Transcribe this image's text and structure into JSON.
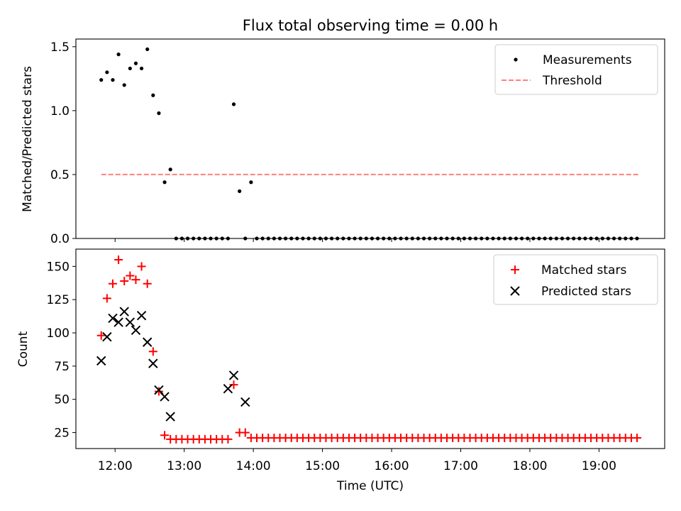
{
  "chart_data": [
    {
      "type": "scatter",
      "title": "Flux total observing time = 0.00 h",
      "xlabel": "",
      "ylabel": "Matched/Predicted stars",
      "ylim": [
        0,
        1.56
      ],
      "yticks": [
        0.0,
        0.5,
        1.0,
        1.5
      ],
      "ytick_labels": [
        "0.0",
        "0.5",
        "1.0",
        "1.5"
      ],
      "legend": {
        "placement": "top-right",
        "entries": [
          "Measurements",
          "Threshold"
        ]
      },
      "colors": {
        "measurements": "#000000",
        "threshold": "#ff7f7f"
      },
      "threshold": {
        "name": "Threshold",
        "y": 0.5,
        "x_start": "11:48",
        "x_end": "19:34"
      },
      "series": [
        {
          "name": "Measurements",
          "x": [
            "11:48",
            "11:53",
            "11:58",
            "12:03",
            "12:08",
            "12:13",
            "12:18",
            "12:23",
            "12:28",
            "12:33",
            "12:38",
            "12:43",
            "12:48",
            "12:53",
            "12:58",
            "13:03",
            "13:08",
            "13:13",
            "13:18",
            "13:23",
            "13:28",
            "13:33",
            "13:38",
            "13:43",
            "13:48",
            "13:53",
            "13:58",
            "14:03",
            "14:08",
            "14:13",
            "14:18",
            "14:23",
            "14:28",
            "14:33",
            "14:38",
            "14:43",
            "14:48",
            "14:53",
            "14:58",
            "15:03",
            "15:08",
            "15:13",
            "15:18",
            "15:23",
            "15:28",
            "15:33",
            "15:38",
            "15:43",
            "15:48",
            "15:53",
            "15:58",
            "16:03",
            "16:08",
            "16:13",
            "16:18",
            "16:23",
            "16:28",
            "16:33",
            "16:38",
            "16:43",
            "16:48",
            "16:53",
            "16:58",
            "17:03",
            "17:08",
            "17:13",
            "17:18",
            "17:23",
            "17:28",
            "17:33",
            "17:38",
            "17:43",
            "17:48",
            "17:53",
            "17:58",
            "18:03",
            "18:08",
            "18:13",
            "18:18",
            "18:23",
            "18:28",
            "18:33",
            "18:38",
            "18:43",
            "18:48",
            "18:53",
            "18:58",
            "19:03",
            "19:08",
            "19:13",
            "19:18",
            "19:23",
            "19:28",
            "19:33"
          ],
          "y": [
            1.24,
            1.3,
            1.24,
            1.44,
            1.2,
            1.33,
            1.37,
            1.33,
            1.48,
            1.12,
            0.98,
            0.44,
            0.54,
            0,
            0,
            0,
            0,
            0,
            0,
            0,
            0,
            0,
            0,
            1.05,
            0.37,
            0,
            0.44,
            0,
            0,
            0,
            0,
            0,
            0,
            0,
            0,
            0,
            0,
            0,
            0,
            0,
            0,
            0,
            0,
            0,
            0,
            0,
            0,
            0,
            0,
            0,
            0,
            0,
            0,
            0,
            0,
            0,
            0,
            0,
            0,
            0,
            0,
            0,
            0,
            0,
            0,
            0,
            0,
            0,
            0,
            0,
            0,
            0,
            0,
            0,
            0,
            0,
            0,
            0,
            0,
            0,
            0,
            0,
            0,
            0,
            0,
            0,
            0,
            0,
            0,
            0,
            0,
            0,
            0,
            0
          ]
        }
      ]
    },
    {
      "type": "scatter",
      "title": "",
      "xlabel": "Time (UTC)",
      "ylabel": "Count",
      "ylim": [
        13,
        163
      ],
      "yticks": [
        25,
        50,
        75,
        100,
        125,
        150
      ],
      "ytick_labels": [
        "25",
        "50",
        "75",
        "100",
        "125",
        "150"
      ],
      "xlim": [
        "11:26",
        "19:57"
      ],
      "xticks": [
        "12:00",
        "13:00",
        "14:00",
        "15:00",
        "16:00",
        "17:00",
        "18:00",
        "19:00"
      ],
      "xtick_labels": [
        "12:00",
        "13:00",
        "14:00",
        "15:00",
        "16:00",
        "17:00",
        "18:00",
        "19:00"
      ],
      "legend": {
        "placement": "top-right",
        "entries": [
          "Matched stars",
          "Predicted stars"
        ]
      },
      "colors": {
        "matched": "#ff0000",
        "predicted": "#000000"
      },
      "series": [
        {
          "name": "Matched stars",
          "x": [
            "11:48",
            "11:53",
            "11:58",
            "12:03",
            "12:08",
            "12:13",
            "12:18",
            "12:23",
            "12:28",
            "12:33",
            "12:38",
            "12:43",
            "12:48",
            "12:53",
            "12:58",
            "13:03",
            "13:08",
            "13:13",
            "13:18",
            "13:23",
            "13:28",
            "13:33",
            "13:38",
            "13:43",
            "13:48",
            "13:53",
            "13:58",
            "14:03",
            "14:08",
            "14:13",
            "14:18",
            "14:23",
            "14:28",
            "14:33",
            "14:38",
            "14:43",
            "14:48",
            "14:53",
            "14:58",
            "15:03",
            "15:08",
            "15:13",
            "15:18",
            "15:23",
            "15:28",
            "15:33",
            "15:38",
            "15:43",
            "15:48",
            "15:53",
            "15:58",
            "16:03",
            "16:08",
            "16:13",
            "16:18",
            "16:23",
            "16:28",
            "16:33",
            "16:38",
            "16:43",
            "16:48",
            "16:53",
            "16:58",
            "17:03",
            "17:08",
            "17:13",
            "17:18",
            "17:23",
            "17:28",
            "17:33",
            "17:38",
            "17:43",
            "17:48",
            "17:53",
            "17:58",
            "18:03",
            "18:08",
            "18:13",
            "18:18",
            "18:23",
            "18:28",
            "18:33",
            "18:38",
            "18:43",
            "18:48",
            "18:53",
            "18:58",
            "19:03",
            "19:08",
            "19:13",
            "19:18",
            "19:23",
            "19:28",
            "19:33"
          ],
          "y": [
            98,
            126,
            137,
            155,
            139,
            143,
            140,
            150,
            137,
            86,
            56,
            23,
            20,
            20,
            20,
            20,
            20,
            20,
            20,
            20,
            20,
            20,
            20,
            61,
            25,
            25,
            21,
            21,
            21,
            21,
            21,
            21,
            21,
            21,
            21,
            21,
            21,
            21,
            21,
            21,
            21,
            21,
            21,
            21,
            21,
            21,
            21,
            21,
            21,
            21,
            21,
            21,
            21,
            21,
            21,
            21,
            21,
            21,
            21,
            21,
            21,
            21,
            21,
            21,
            21,
            21,
            21,
            21,
            21,
            21,
            21,
            21,
            21,
            21,
            21,
            21,
            21,
            21,
            21,
            21,
            21,
            21,
            21,
            21,
            21,
            21,
            21,
            21,
            21,
            21,
            21,
            21,
            21,
            21
          ]
        },
        {
          "name": "Predicted stars",
          "x": [
            "11:48",
            "11:53",
            "11:58",
            "12:03",
            "12:08",
            "12:13",
            "12:18",
            "12:23",
            "12:28",
            "12:33",
            "12:38",
            "12:43",
            "12:48",
            "13:38",
            "13:43",
            "13:53"
          ],
          "y": [
            79,
            97,
            111,
            108,
            116,
            108,
            102,
            113,
            93,
            77,
            57,
            52,
            37,
            58,
            68,
            48
          ]
        }
      ]
    }
  ]
}
